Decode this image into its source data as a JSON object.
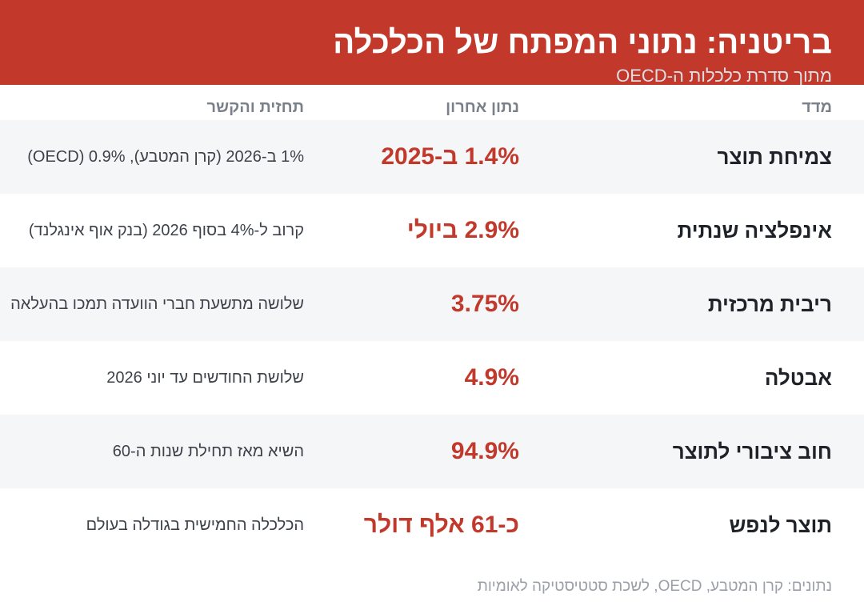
{
  "header": {
    "title": "בריטניה: נתוני המפתח של הכלכלה",
    "subtitle": "מתוך סדרת כלכלות ה-OECD"
  },
  "columns": {
    "metric": "מדד",
    "value": "נתון אחרון",
    "context": "תחזית והקשר"
  },
  "rows": [
    {
      "metric": "צמיחת תוצר",
      "value": "1.4% ב-2025",
      "context": "1% ב-2026 (קרן המטבע), 0.9% (OECD)"
    },
    {
      "metric": "אינפלציה שנתית",
      "value": "2.9% ביולי",
      "context": "קרוב ל-4% בסוף 2026 (בנק אוף אינגלנד)"
    },
    {
      "metric": "ריבית מרכזית",
      "value": "3.75%",
      "context": "שלושה מתשעת חברי הוועדה תמכו בהעלאה"
    },
    {
      "metric": "אבטלה",
      "value": "4.9%",
      "context": "שלושת החודשים עד יוני 2026"
    },
    {
      "metric": "חוב ציבורי לתוצר",
      "value": "94.9%",
      "context": "השיא מאז תחילת שנות ה-60"
    },
    {
      "metric": "תוצר לנפש",
      "value": "כ-61 אלף דולר",
      "context": "הכלכלה החמישית בגודלה בעולם"
    }
  ],
  "footer": {
    "source": "נתונים: קרן המטבע, OECD, לשכת סטטיסטיקה לאומיות"
  },
  "colors": {
    "accent": "#c2392b",
    "row_shade": "#f5f6f8",
    "text_dark": "#1f2329",
    "text_muted": "#7a8089"
  }
}
